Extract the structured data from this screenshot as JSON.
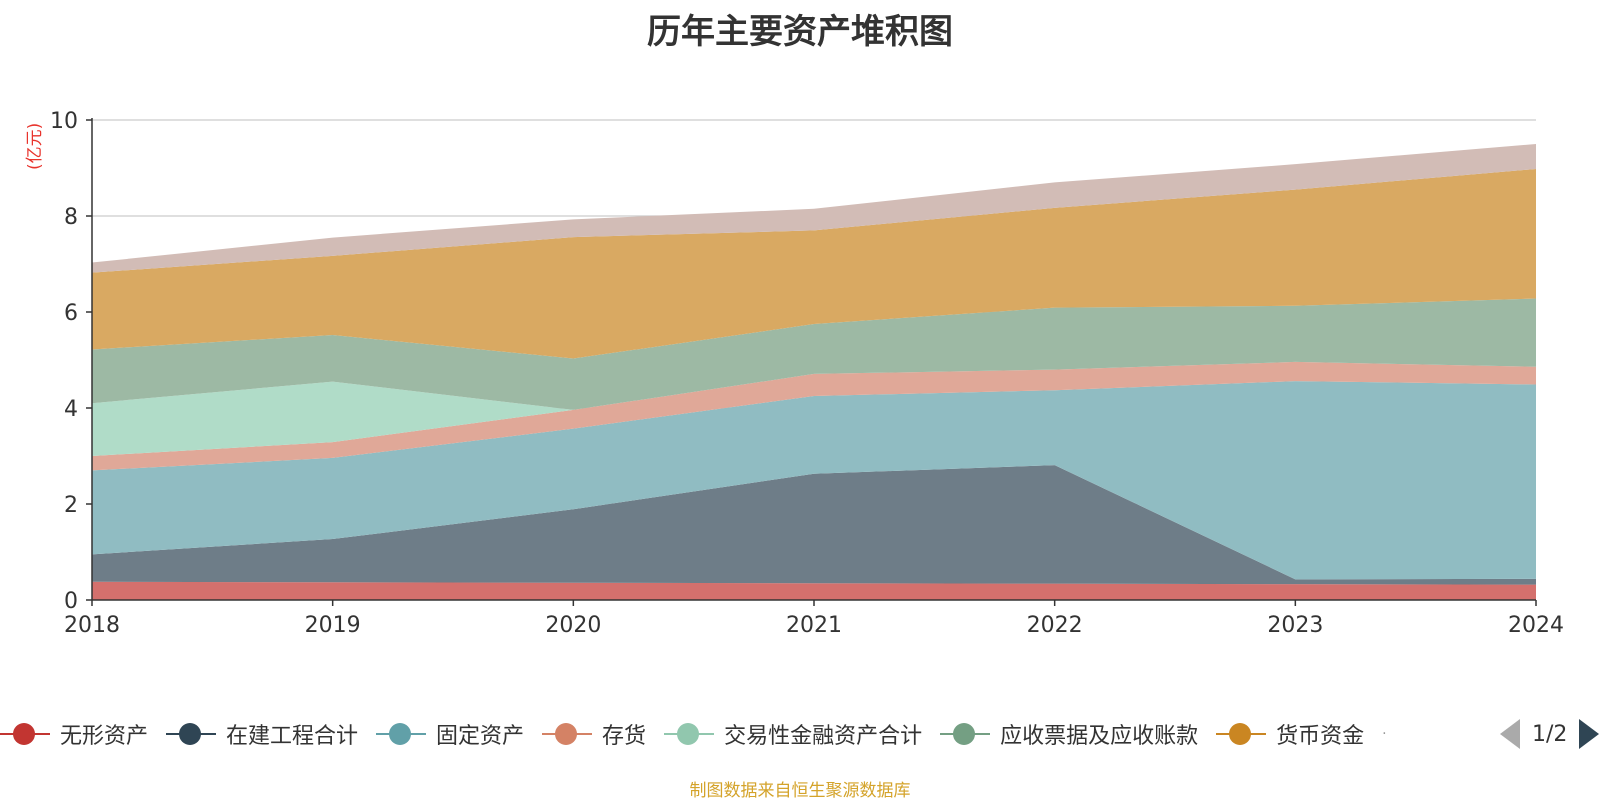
{
  "chart_data": {
    "type": "area",
    "stacked": true,
    "title": "历年主要资产堆积图",
    "unit_label": "(亿元)",
    "x": [
      "2018",
      "2019",
      "2020",
      "2021",
      "2022",
      "2023",
      "2024"
    ],
    "ylim": [
      0,
      10
    ],
    "yticks": [
      0,
      2,
      4,
      6,
      8,
      10
    ],
    "grid": true,
    "legend_position": "bottom",
    "series": [
      {
        "name": "无形资产",
        "color": "#c23531",
        "fill": "#d4706d",
        "values": [
          0.38,
          0.37,
          0.36,
          0.35,
          0.34,
          0.33,
          0.32
        ]
      },
      {
        "name": "在建工程合计",
        "color": "#2f4554",
        "fill": "#6e7d88",
        "values": [
          0.57,
          0.9,
          1.53,
          2.28,
          2.47,
          0.1,
          0.12
        ]
      },
      {
        "name": "固定资产",
        "color": "#61a0a8",
        "fill": "#90bcc2",
        "values": [
          1.75,
          1.69,
          1.68,
          1.62,
          1.56,
          4.13,
          4.05
        ]
      },
      {
        "name": "存货",
        "color": "#d48265",
        "fill": "#e0a898",
        "values": [
          0.3,
          0.33,
          0.39,
          0.46,
          0.43,
          0.4,
          0.37
        ]
      },
      {
        "name": "交易性金融资产合计",
        "color": "#91c7ae",
        "fill": "#b0dcc8",
        "values": [
          1.1,
          1.26,
          0.0,
          0.0,
          0.0,
          0.0,
          0.0
        ]
      },
      {
        "name": "应收票据及应收账款",
        "color": "#749f83",
        "fill": "#9db9a4",
        "values": [
          1.12,
          0.97,
          1.07,
          1.04,
          1.29,
          1.17,
          1.42
        ]
      },
      {
        "name": "货币资金",
        "color": "#ca8622",
        "fill": "#d9a962",
        "values": [
          1.6,
          1.65,
          2.53,
          1.95,
          2.08,
          2.42,
          2.7
        ]
      },
      {
        "name": "",
        "color": "#bda29a",
        "fill": "#d2bcb6",
        "values": [
          0.21,
          0.38,
          0.37,
          0.45,
          0.53,
          0.53,
          0.52
        ]
      }
    ]
  },
  "legend": {
    "items": [
      {
        "label": "无形资产",
        "color": "#c23531"
      },
      {
        "label": "在建工程合计",
        "color": "#2f4554"
      },
      {
        "label": "固定资产",
        "color": "#61a0a8"
      },
      {
        "label": "存货",
        "color": "#d48265"
      },
      {
        "label": "交易性金融资产合计",
        "color": "#91c7ae"
      },
      {
        "label": "应收票据及应收账款",
        "color": "#749f83"
      },
      {
        "label": "货币资金",
        "color": "#ca8622"
      }
    ],
    "page_indicator": "1/2"
  },
  "footer": "制图数据来自恒生聚源数据库"
}
